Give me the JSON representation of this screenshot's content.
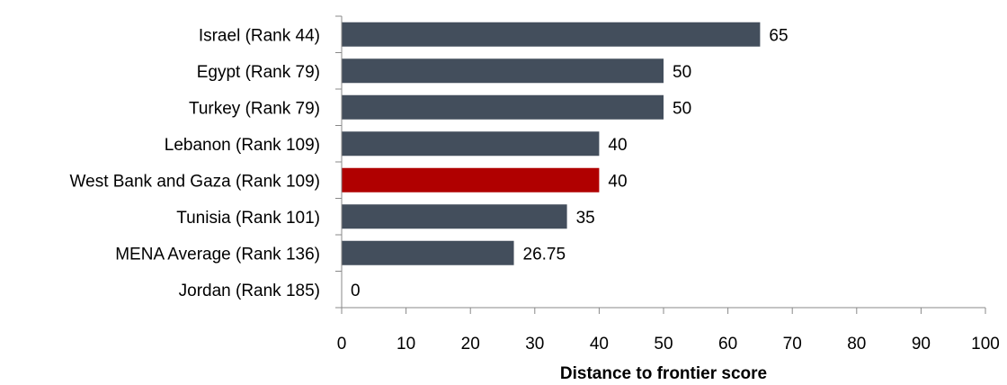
{
  "chart_data": {
    "type": "bar",
    "orientation": "horizontal",
    "categories": [
      "Israel (Rank 44)",
      "Egypt (Rank 79)",
      "Turkey (Rank 79)",
      "Lebanon (Rank 109)",
      "West Bank and Gaza (Rank 109)",
      "Tunisia (Rank 101)",
      "MENA Average (Rank 136)",
      "Jordan (Rank 185)"
    ],
    "values": [
      65,
      50,
      50,
      40,
      40,
      35,
      26.75,
      0
    ],
    "value_labels": [
      "65",
      "50",
      "50",
      "40",
      "40",
      "35",
      "26.75",
      "0"
    ],
    "highlight_index": 4,
    "colors": {
      "bar": "#434e5c",
      "highlight": "#b00000",
      "axis": "#888888"
    },
    "xlabel": "Distance to frontier score",
    "xlim": [
      0,
      100
    ],
    "xticks": [
      0,
      10,
      20,
      30,
      40,
      50,
      60,
      70,
      80,
      90,
      100
    ],
    "grid": false,
    "legend": "none"
  }
}
